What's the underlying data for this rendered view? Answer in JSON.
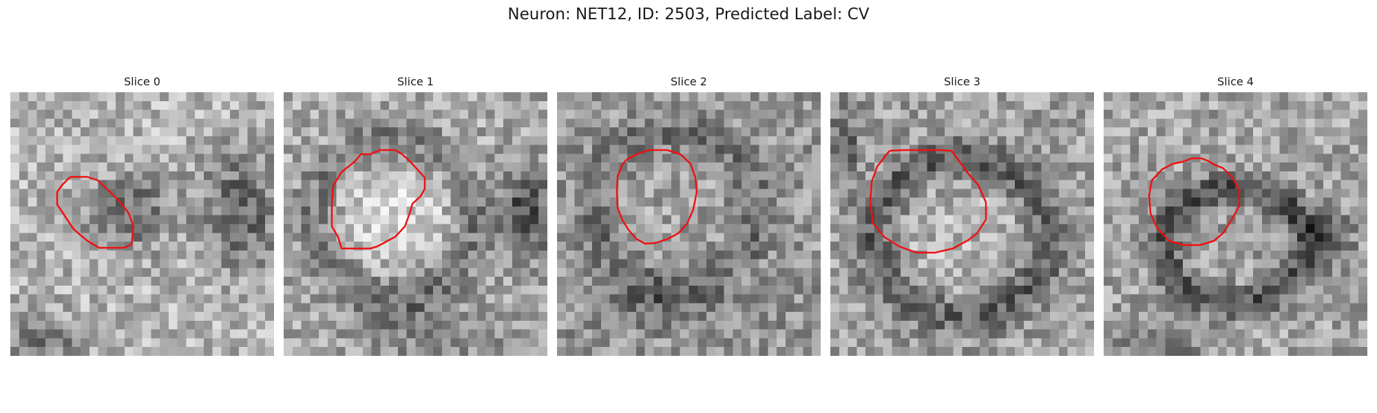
{
  "figure": {
    "title": "Neuron: NET12, ID: 2503, Predicted Label: CV"
  },
  "panels": [
    {
      "title": "Slice 0"
    },
    {
      "title": "Slice 1"
    },
    {
      "title": "Slice 2"
    },
    {
      "title": "Slice 3"
    },
    {
      "title": "Slice 4"
    }
  ],
  "colors": {
    "contour": "#ee1111",
    "background": "#ffffff"
  }
}
